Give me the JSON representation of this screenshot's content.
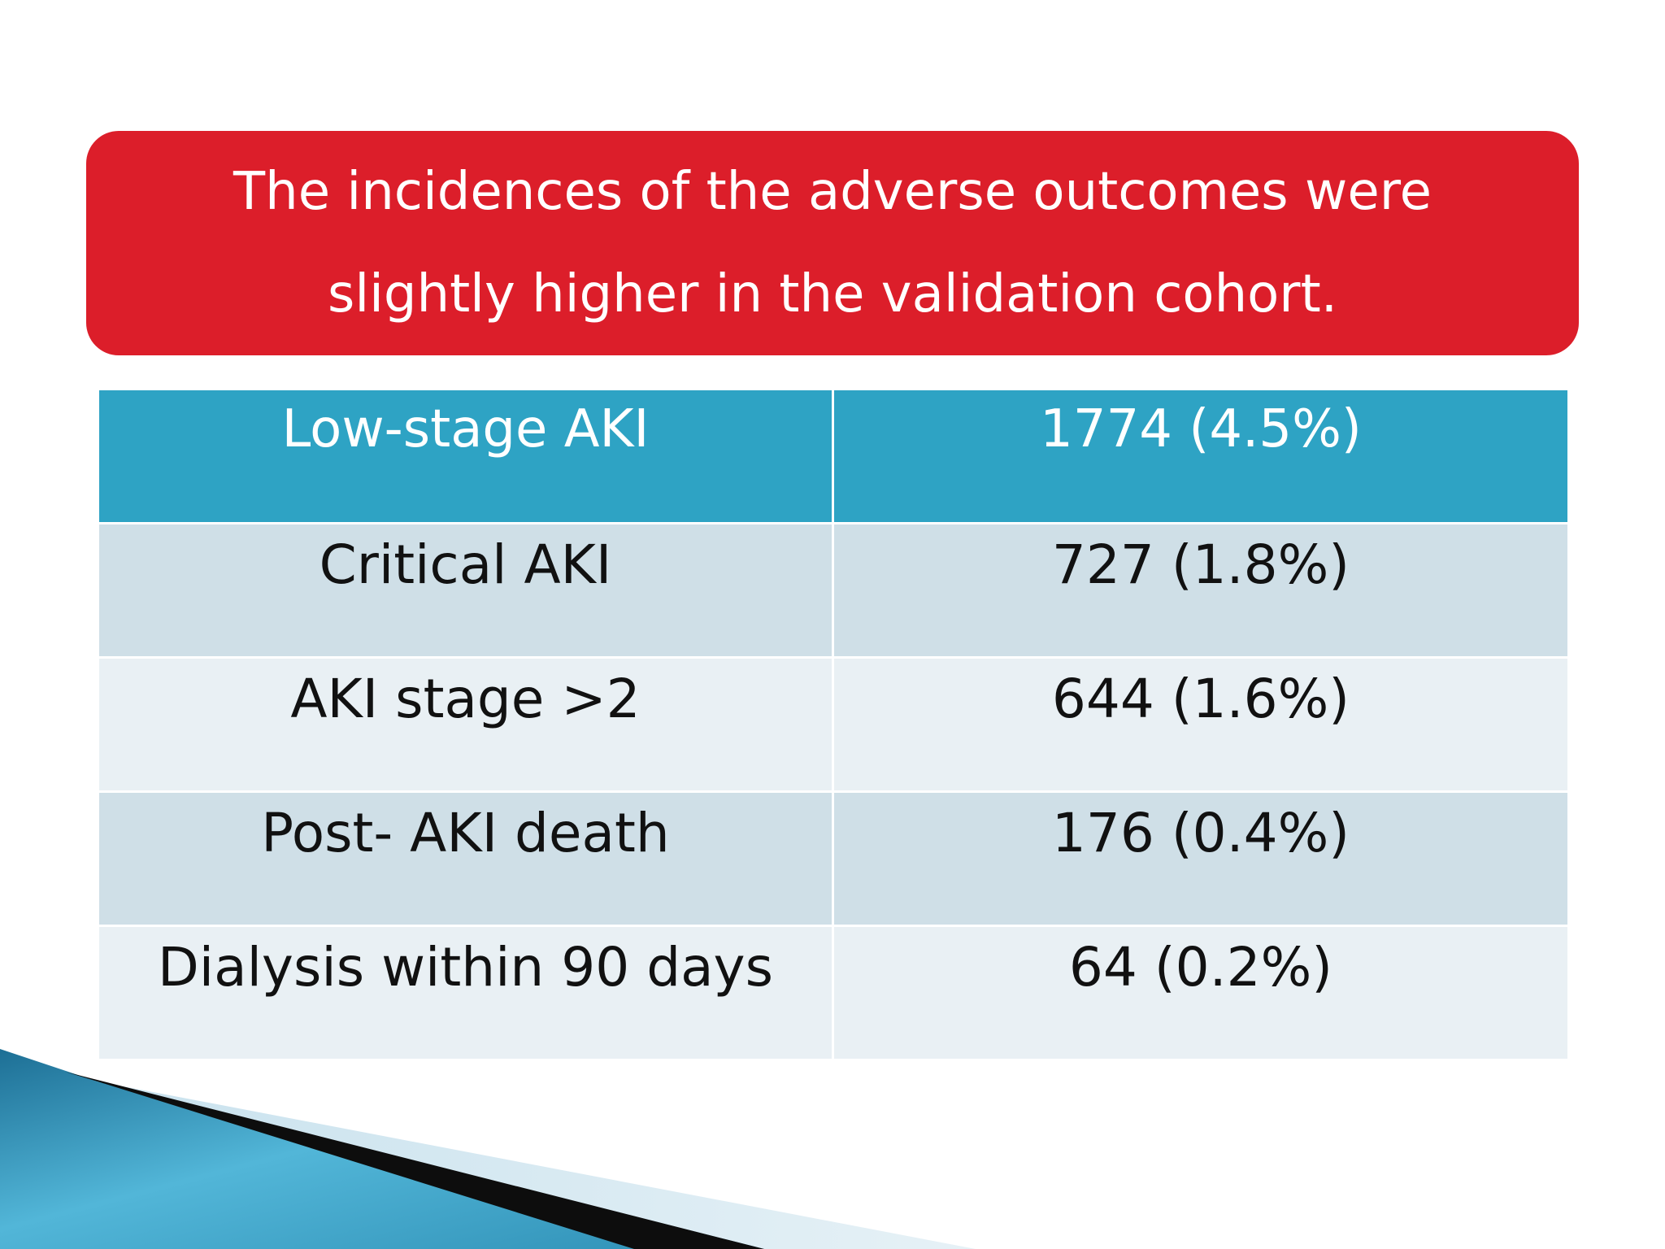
{
  "banner": {
    "line1": "The incidences of the adverse outcomes were",
    "line2": "slightly higher in the validation cohort."
  },
  "table": {
    "rows": [
      {
        "outcome": "Low-stage AKI",
        "value": "1774 (4.5%)"
      },
      {
        "outcome": "Critical AKI",
        "value": "727 (1.8%)"
      },
      {
        "outcome": "AKI stage >2",
        "value": "644 (1.6%)"
      },
      {
        "outcome": "Post- AKI death",
        "value": "176 (0.4%)"
      },
      {
        "outcome": "Dialysis within 90 days",
        "value": "64 (0.2%)"
      }
    ]
  },
  "colors": {
    "banner": "#dc1e2a",
    "header_row": "#2ea3c4",
    "band_dark": "#cfdfe7",
    "band_light": "#e9f0f4"
  }
}
